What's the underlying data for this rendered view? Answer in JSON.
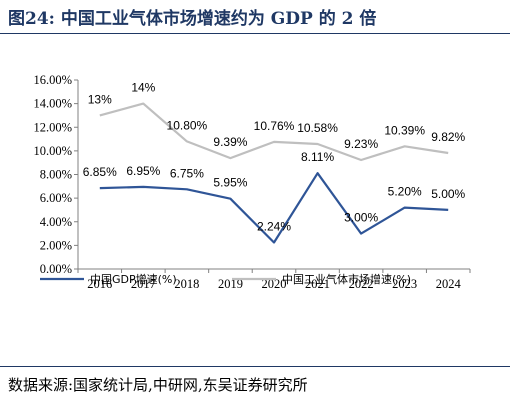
{
  "header": {
    "title": "图24:  中国工业气体市场增速约为 GDP 的 2 倍"
  },
  "footer": {
    "source": "数据来源:国家统计局,中研网,东吴证券研究所"
  },
  "chart_data": {
    "type": "line",
    "x": [
      "2016",
      "2017",
      "2018",
      "2019",
      "2020",
      "2021",
      "2022",
      "2023",
      "2024"
    ],
    "ylim": [
      0,
      16
    ],
    "yticks": [
      "0.00%",
      "2.00%",
      "4.00%",
      "6.00%",
      "8.00%",
      "10.00%",
      "12.00%",
      "14.00%",
      "16.00%"
    ],
    "grid": false,
    "legend": "bottom",
    "series": [
      {
        "name": "中国GDP增速(%)",
        "color": "#2f5597",
        "values": [
          6.85,
          6.95,
          6.75,
          5.95,
          2.24,
          8.11,
          3.0,
          5.2,
          5.0
        ],
        "labels": [
          "6.85%",
          "6.95%",
          "6.75%",
          "5.95%",
          "2.24%",
          "8.11%",
          "3.00%",
          "5.20%",
          "5.00%"
        ]
      },
      {
        "name": "中国工业气体市场增速(%)",
        "color": "#bfbfbf",
        "values": [
          13,
          14,
          10.8,
          9.39,
          10.76,
          10.58,
          9.23,
          10.39,
          9.82
        ],
        "labels": [
          "13%",
          "14%",
          "10.80%",
          "9.39%",
          "10.76%",
          "10.58%",
          "9.23%",
          "10.39%",
          "9.82%"
        ]
      }
    ]
  }
}
